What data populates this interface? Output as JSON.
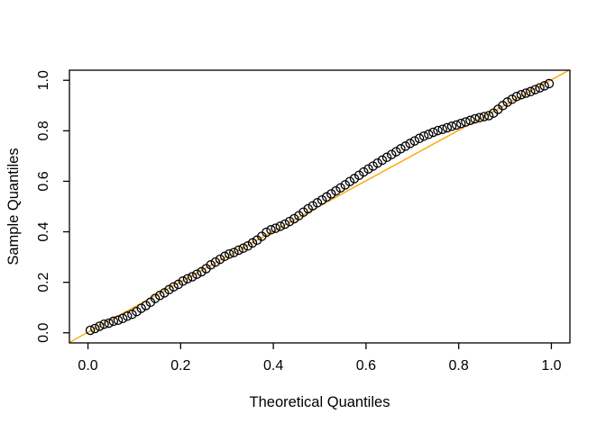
{
  "chart_data": {
    "type": "scatter",
    "title": "",
    "xlabel": "Theoretical Quantiles",
    "ylabel": "Sample Quantiles",
    "xlim": [
      -0.04,
      1.04
    ],
    "ylim": [
      -0.04,
      1.04
    ],
    "grid": false,
    "legend_position": "none",
    "background_color": "#FFFFFF",
    "frame_color": "#000000",
    "xticks": {
      "values": [
        0.0,
        0.2,
        0.4,
        0.6,
        0.8,
        1.0
      ],
      "labels": [
        "0.0",
        "0.2",
        "0.4",
        "0.6",
        "0.8",
        "1.0"
      ]
    },
    "yticks": {
      "values": [
        0.0,
        0.2,
        0.4,
        0.6,
        0.8,
        1.0
      ],
      "labels": [
        "0.0",
        "0.2",
        "0.4",
        "0.6",
        "0.8",
        "1.0"
      ]
    },
    "marker": {
      "shape": "open-circle",
      "stroke": "#000000",
      "fill": "none",
      "radius_px": 4.6,
      "stroke_width": 1.3
    },
    "ref_line": {
      "slope": 1.0,
      "intercept": 0.002,
      "color": "#FFA500",
      "stroke_width": 1.4
    },
    "points": [
      [
        0.005,
        0.01
      ],
      [
        0.015,
        0.017
      ],
      [
        0.025,
        0.026
      ],
      [
        0.035,
        0.034
      ],
      [
        0.045,
        0.038
      ],
      [
        0.055,
        0.046
      ],
      [
        0.065,
        0.05
      ],
      [
        0.075,
        0.057
      ],
      [
        0.085,
        0.066
      ],
      [
        0.095,
        0.073
      ],
      [
        0.105,
        0.084
      ],
      [
        0.115,
        0.097
      ],
      [
        0.125,
        0.108
      ],
      [
        0.135,
        0.121
      ],
      [
        0.145,
        0.136
      ],
      [
        0.155,
        0.148
      ],
      [
        0.165,
        0.158
      ],
      [
        0.175,
        0.171
      ],
      [
        0.185,
        0.182
      ],
      [
        0.195,
        0.192
      ],
      [
        0.205,
        0.205
      ],
      [
        0.215,
        0.214
      ],
      [
        0.225,
        0.222
      ],
      [
        0.235,
        0.232
      ],
      [
        0.245,
        0.242
      ],
      [
        0.255,
        0.254
      ],
      [
        0.265,
        0.269
      ],
      [
        0.275,
        0.28
      ],
      [
        0.285,
        0.291
      ],
      [
        0.295,
        0.303
      ],
      [
        0.305,
        0.312
      ],
      [
        0.315,
        0.318
      ],
      [
        0.325,
        0.327
      ],
      [
        0.335,
        0.335
      ],
      [
        0.345,
        0.344
      ],
      [
        0.355,
        0.356
      ],
      [
        0.365,
        0.367
      ],
      [
        0.375,
        0.382
      ],
      [
        0.385,
        0.398
      ],
      [
        0.395,
        0.408
      ],
      [
        0.405,
        0.414
      ],
      [
        0.415,
        0.422
      ],
      [
        0.425,
        0.43
      ],
      [
        0.435,
        0.441
      ],
      [
        0.445,
        0.452
      ],
      [
        0.455,
        0.464
      ],
      [
        0.465,
        0.478
      ],
      [
        0.475,
        0.491
      ],
      [
        0.485,
        0.503
      ],
      [
        0.495,
        0.515
      ],
      [
        0.505,
        0.526
      ],
      [
        0.515,
        0.538
      ],
      [
        0.525,
        0.55
      ],
      [
        0.535,
        0.562
      ],
      [
        0.545,
        0.574
      ],
      [
        0.555,
        0.586
      ],
      [
        0.565,
        0.599
      ],
      [
        0.575,
        0.611
      ],
      [
        0.585,
        0.624
      ],
      [
        0.595,
        0.637
      ],
      [
        0.605,
        0.649
      ],
      [
        0.615,
        0.66
      ],
      [
        0.625,
        0.672
      ],
      [
        0.635,
        0.684
      ],
      [
        0.645,
        0.695
      ],
      [
        0.655,
        0.706
      ],
      [
        0.665,
        0.717
      ],
      [
        0.675,
        0.729
      ],
      [
        0.685,
        0.739
      ],
      [
        0.695,
        0.75
      ],
      [
        0.705,
        0.76
      ],
      [
        0.715,
        0.77
      ],
      [
        0.725,
        0.779
      ],
      [
        0.735,
        0.786
      ],
      [
        0.745,
        0.794
      ],
      [
        0.755,
        0.801
      ],
      [
        0.765,
        0.806
      ],
      [
        0.775,
        0.812
      ],
      [
        0.785,
        0.818
      ],
      [
        0.795,
        0.823
      ],
      [
        0.805,
        0.829
      ],
      [
        0.815,
        0.835
      ],
      [
        0.825,
        0.841
      ],
      [
        0.835,
        0.847
      ],
      [
        0.845,
        0.852
      ],
      [
        0.855,
        0.856
      ],
      [
        0.865,
        0.86
      ],
      [
        0.875,
        0.87
      ],
      [
        0.885,
        0.885
      ],
      [
        0.895,
        0.9
      ],
      [
        0.905,
        0.914
      ],
      [
        0.915,
        0.925
      ],
      [
        0.925,
        0.936
      ],
      [
        0.935,
        0.943
      ],
      [
        0.945,
        0.949
      ],
      [
        0.955,
        0.955
      ],
      [
        0.965,
        0.963
      ],
      [
        0.975,
        0.97
      ],
      [
        0.985,
        0.978
      ],
      [
        0.995,
        0.987
      ]
    ]
  }
}
